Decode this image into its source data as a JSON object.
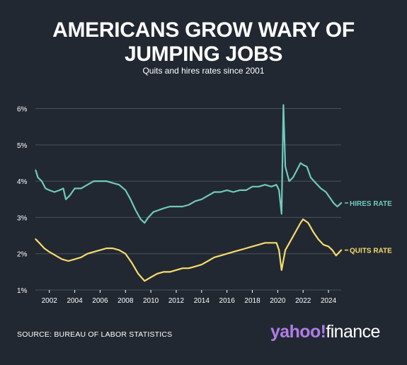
{
  "title": "AMERICANS GROW WARY OF\nJUMPING JOBS",
  "subtitle": "Quits and hires rates since 2001",
  "source": "SOURCE: BUREAU OF LABOR STATISTICS",
  "brand": {
    "part1": "yahoo!",
    "part2": "finance"
  },
  "colors": {
    "background": "#222831",
    "hires": "#6fcabd",
    "quits": "#f6dc6e",
    "brand": "#b07ce8",
    "grid": "#4a505a"
  },
  "chart_data": {
    "type": "line",
    "title": "AMERICANS GROW WARY OF JUMPING JOBS",
    "subtitle": "Quits and hires rates since 2001",
    "xlim": [
      2000.9,
      2025.0
    ],
    "ylim": [
      1,
      6.4
    ],
    "yticks": [
      1,
      2,
      3,
      4,
      5,
      6
    ],
    "ytick_labels": [
      "1%",
      "2%",
      "3%",
      "4%",
      "5%",
      "6%"
    ],
    "xticks": [
      2002,
      2004,
      2006,
      2008,
      2010,
      2012,
      2014,
      2016,
      2018,
      2020,
      2022,
      2024
    ],
    "xtick_labels": [
      "2002",
      "2004",
      "2006",
      "2008",
      "2010",
      "2012",
      "2014",
      "2016",
      "2018",
      "2020",
      "2022",
      "2024"
    ],
    "grid": "horizontal",
    "series": [
      {
        "name": "HIRES RATE",
        "color": "#6fcabd",
        "points": [
          [
            2000.92,
            4.3
          ],
          [
            2001.1,
            4.1
          ],
          [
            2001.4,
            4.0
          ],
          [
            2001.7,
            3.8
          ],
          [
            2002.0,
            3.75
          ],
          [
            2002.4,
            3.7
          ],
          [
            2002.8,
            3.75
          ],
          [
            2003.1,
            3.8
          ],
          [
            2003.3,
            3.5
          ],
          [
            2003.6,
            3.6
          ],
          [
            2004.0,
            3.8
          ],
          [
            2004.5,
            3.8
          ],
          [
            2005.0,
            3.9
          ],
          [
            2005.5,
            4.0
          ],
          [
            2006.0,
            4.0
          ],
          [
            2006.5,
            4.0
          ],
          [
            2007.0,
            3.95
          ],
          [
            2007.5,
            3.9
          ],
          [
            2008.0,
            3.75
          ],
          [
            2008.4,
            3.5
          ],
          [
            2008.8,
            3.2
          ],
          [
            2009.2,
            2.95
          ],
          [
            2009.5,
            2.85
          ],
          [
            2009.8,
            3.0
          ],
          [
            2010.2,
            3.15
          ],
          [
            2010.6,
            3.2
          ],
          [
            2011.0,
            3.25
          ],
          [
            2011.5,
            3.3
          ],
          [
            2012.0,
            3.3
          ],
          [
            2012.5,
            3.3
          ],
          [
            2013.0,
            3.35
          ],
          [
            2013.5,
            3.45
          ],
          [
            2014.0,
            3.5
          ],
          [
            2014.5,
            3.6
          ],
          [
            2015.0,
            3.7
          ],
          [
            2015.5,
            3.7
          ],
          [
            2016.0,
            3.75
          ],
          [
            2016.5,
            3.7
          ],
          [
            2017.0,
            3.75
          ],
          [
            2017.5,
            3.75
          ],
          [
            2018.0,
            3.85
          ],
          [
            2018.5,
            3.85
          ],
          [
            2019.0,
            3.9
          ],
          [
            2019.5,
            3.85
          ],
          [
            2019.9,
            3.9
          ],
          [
            2020.1,
            3.75
          ],
          [
            2020.3,
            3.1
          ],
          [
            2020.45,
            6.1
          ],
          [
            2020.6,
            4.4
          ],
          [
            2020.9,
            4.0
          ],
          [
            2021.2,
            4.1
          ],
          [
            2021.5,
            4.3
          ],
          [
            2021.8,
            4.5
          ],
          [
            2022.0,
            4.45
          ],
          [
            2022.3,
            4.4
          ],
          [
            2022.6,
            4.1
          ],
          [
            2023.0,
            3.95
          ],
          [
            2023.4,
            3.8
          ],
          [
            2023.8,
            3.7
          ],
          [
            2024.1,
            3.55
          ],
          [
            2024.4,
            3.4
          ],
          [
            2024.7,
            3.3
          ],
          [
            2025.0,
            3.4
          ]
        ]
      },
      {
        "name": "QUITS RATE",
        "color": "#f6dc6e",
        "points": [
          [
            2000.92,
            2.4
          ],
          [
            2001.2,
            2.3
          ],
          [
            2001.6,
            2.15
          ],
          [
            2002.0,
            2.05
          ],
          [
            2002.5,
            1.95
          ],
          [
            2003.0,
            1.85
          ],
          [
            2003.5,
            1.8
          ],
          [
            2004.0,
            1.85
          ],
          [
            2004.5,
            1.9
          ],
          [
            2005.0,
            2.0
          ],
          [
            2005.5,
            2.05
          ],
          [
            2006.0,
            2.1
          ],
          [
            2006.5,
            2.15
          ],
          [
            2007.0,
            2.15
          ],
          [
            2007.5,
            2.1
          ],
          [
            2008.0,
            2.0
          ],
          [
            2008.5,
            1.75
          ],
          [
            2009.0,
            1.45
          ],
          [
            2009.5,
            1.25
          ],
          [
            2010.0,
            1.35
          ],
          [
            2010.5,
            1.45
          ],
          [
            2011.0,
            1.5
          ],
          [
            2011.5,
            1.5
          ],
          [
            2012.0,
            1.55
          ],
          [
            2012.5,
            1.6
          ],
          [
            2013.0,
            1.6
          ],
          [
            2013.5,
            1.65
          ],
          [
            2014.0,
            1.7
          ],
          [
            2014.5,
            1.8
          ],
          [
            2015.0,
            1.9
          ],
          [
            2015.5,
            1.95
          ],
          [
            2016.0,
            2.0
          ],
          [
            2016.5,
            2.05
          ],
          [
            2017.0,
            2.1
          ],
          [
            2017.5,
            2.15
          ],
          [
            2018.0,
            2.2
          ],
          [
            2018.5,
            2.25
          ],
          [
            2019.0,
            2.3
          ],
          [
            2019.5,
            2.3
          ],
          [
            2019.9,
            2.3
          ],
          [
            2020.1,
            2.1
          ],
          [
            2020.3,
            1.55
          ],
          [
            2020.6,
            2.1
          ],
          [
            2021.0,
            2.35
          ],
          [
            2021.4,
            2.6
          ],
          [
            2021.8,
            2.85
          ],
          [
            2022.0,
            2.95
          ],
          [
            2022.4,
            2.85
          ],
          [
            2022.8,
            2.6
          ],
          [
            2023.2,
            2.4
          ],
          [
            2023.6,
            2.25
          ],
          [
            2024.0,
            2.2
          ],
          [
            2024.3,
            2.1
          ],
          [
            2024.6,
            1.95
          ],
          [
            2025.0,
            2.1
          ]
        ]
      }
    ]
  }
}
